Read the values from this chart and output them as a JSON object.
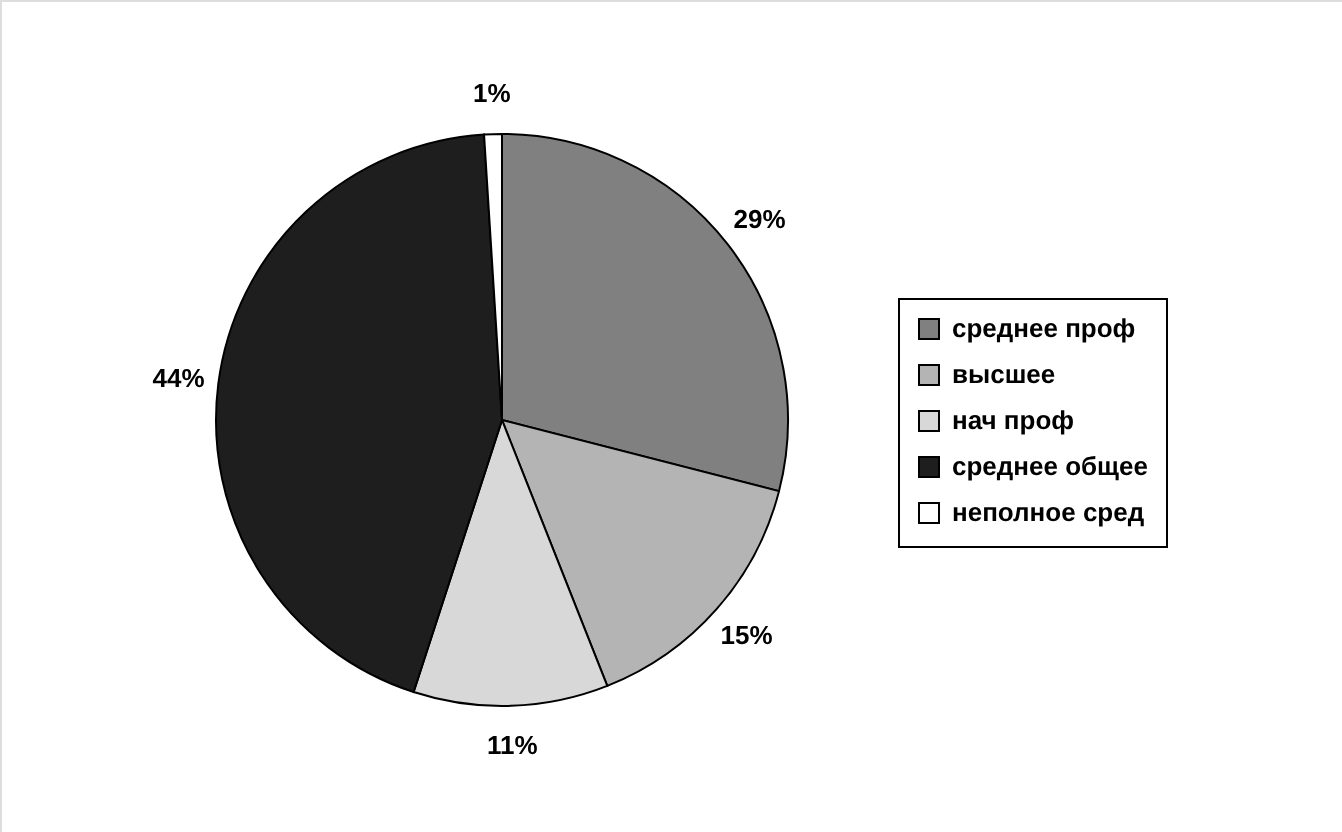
{
  "chart_data": {
    "type": "pie",
    "categories": [
      "среднее проф",
      "высшее",
      "нач проф",
      "среднее общее",
      "неполное сред"
    ],
    "values": [
      29,
      15,
      11,
      44,
      1
    ],
    "colors": [
      "#808080",
      "#b4b4b4",
      "#d8d8d8",
      "#1e1e1e",
      "#ffffff"
    ],
    "value_labels": [
      "29%",
      "15%",
      "11%",
      "44%",
      "1%"
    ],
    "legend": "right"
  }
}
